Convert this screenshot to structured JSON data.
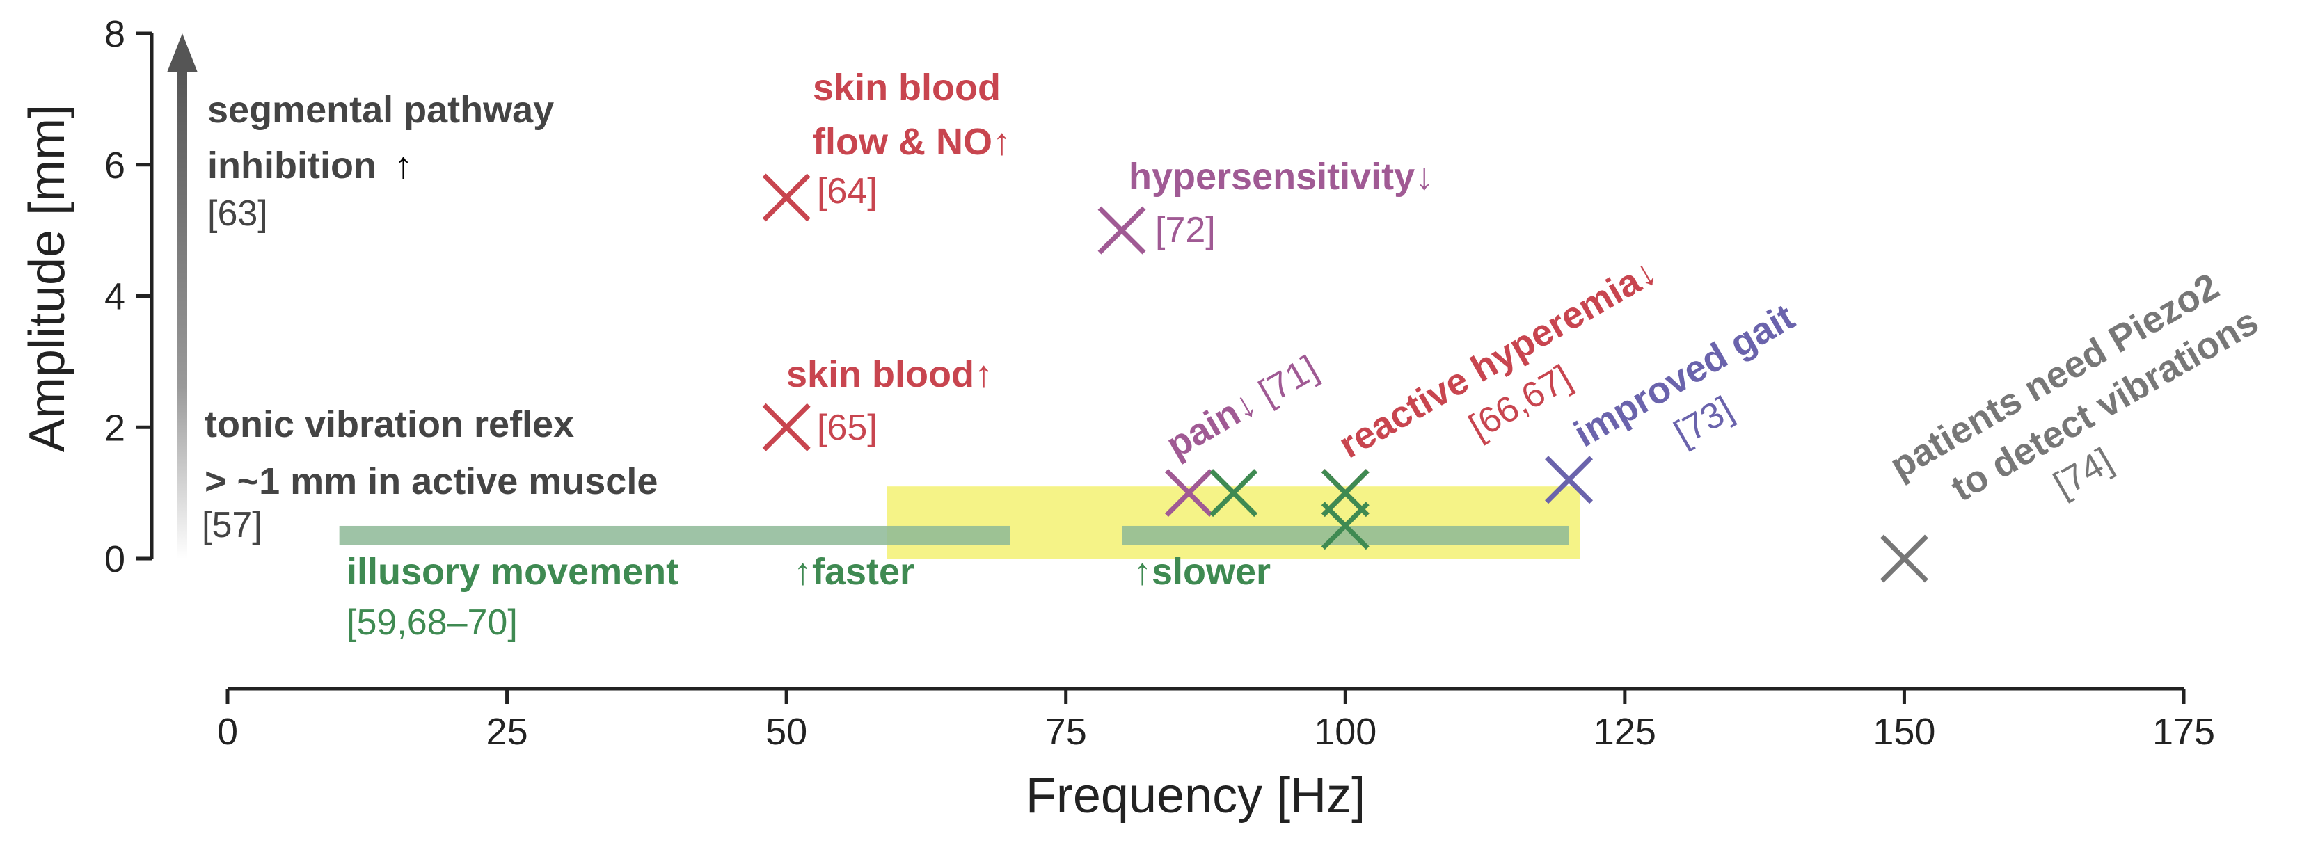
{
  "chart_data": {
    "type": "scatter",
    "xlabel": "Frequency [Hz]",
    "ylabel": "Amplitude [mm]",
    "xlim": [
      0,
      175
    ],
    "ylim": [
      0,
      8
    ],
    "x_ticks": [
      0,
      25,
      50,
      75,
      100,
      125,
      150,
      175
    ],
    "y_ticks": [
      0,
      2,
      4,
      6,
      8
    ],
    "grid": false,
    "colors": {
      "red": "#c8454f",
      "purple": "#a05a94",
      "green": "#3f8a52",
      "blue": "#6a63ac",
      "grey": "#777777",
      "dark": "#444444",
      "highlight": "#f4f27a",
      "band": "#8db896",
      "axis": "#222222"
    },
    "highlight_region": {
      "x": [
        59,
        121
      ],
      "y": [
        0,
        1.1
      ]
    },
    "range_bands": [
      {
        "name": "faster",
        "x": [
          10,
          70
        ],
        "y": 0.35,
        "color": "green"
      },
      {
        "name": "slower",
        "x": [
          80,
          120
        ],
        "y": 0.35,
        "color": "green"
      }
    ],
    "amplitude_arrow": {
      "x": -4,
      "y": [
        0,
        8
      ]
    },
    "points": [
      {
        "x": 50,
        "y": 5.5,
        "color": "red",
        "label": "skin blood flow & NO↑ [64]"
      },
      {
        "x": 50,
        "y": 2.0,
        "color": "red",
        "label": "skin blood↑ [65]"
      },
      {
        "x": 80,
        "y": 5.0,
        "color": "purple",
        "label": "hypersensitivity↓ [72]"
      },
      {
        "x": 86,
        "y": 1.0,
        "color": "purple",
        "label": "pain↓ [71]"
      },
      {
        "x": 90,
        "y": 1.0,
        "color": "green",
        "label": ""
      },
      {
        "x": 100,
        "y": 1.0,
        "color": "red",
        "label": "reactive hyperemia↓ [66,67]"
      },
      {
        "x": 100,
        "y": 1.0,
        "color": "green",
        "label": ""
      },
      {
        "x": 100,
        "y": 0.5,
        "color": "green",
        "label": ""
      },
      {
        "x": 120,
        "y": 1.2,
        "color": "blue",
        "label": "improved gait [73]"
      },
      {
        "x": 150,
        "y": 0.0,
        "color": "grey",
        "label": "patients need Piezo2 to detect vibrations [74]"
      }
    ],
    "annotations": {
      "segmental_line1": "segmental pathway",
      "segmental_line2": "inhibition",
      "segmental_arrow": "↑",
      "segmental_ref": "[63]",
      "tonic_line1": "tonic vibration reflex",
      "tonic_line2": "> ~1 mm in active muscle",
      "tonic_ref": "[57]",
      "skin_flow_line1": "skin blood",
      "skin_flow_line2": "flow & NO↑",
      "skin_flow_ref": "[64]",
      "skin_blood": "skin blood↑",
      "skin_blood_ref": "[65]",
      "hypersensitivity": "hypersensitivity↓",
      "hypersensitivity_ref": "[72]",
      "pain": "pain↓",
      "pain_ref": "[71]",
      "hyperemia": "reactive hyperemia↓",
      "hyperemia_ref": "[66,67]",
      "gait": "improved gait",
      "gait_ref": "[73]",
      "piezo_line1": "patients need Piezo2",
      "piezo_line2": "to detect vibrations",
      "piezo_ref": "[74]",
      "illusory": "illusory movement",
      "illusory_ref": "[59,68–70]",
      "faster": "↑faster",
      "slower": "↑slower"
    }
  }
}
